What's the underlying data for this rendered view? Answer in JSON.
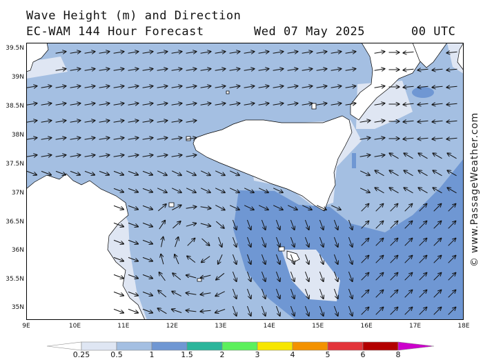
{
  "header": {
    "title": "Wave Height (m) and Direction",
    "model": "EC-WAM 144 Hour Forecast",
    "date": "Wed 07 May 2025",
    "time": "00 UTC"
  },
  "credit": "© www.PassageWeather.com",
  "axes": {
    "lat_labels": [
      "39.5N",
      "39N",
      "38.5N",
      "38N",
      "37.5N",
      "37N",
      "36.5N",
      "36N",
      "35.5N",
      "35N"
    ],
    "lon_labels": [
      "9E",
      "10E",
      "11E",
      "12E",
      "13E",
      "14E",
      "15E",
      "16E",
      "17E",
      "18E"
    ],
    "lat_range": [
      34.8,
      39.7
    ],
    "lon_range": [
      9,
      18
    ]
  },
  "legend": {
    "ticks": [
      "0.25",
      "0.5",
      "1",
      "1.5",
      "2",
      "3",
      "4",
      "5",
      "6",
      "8"
    ],
    "colors": [
      "#ffffff",
      "#dfe6f3",
      "#a4bfe2",
      "#6f97d3",
      "#2bb59b",
      "#5cf05c",
      "#f7e600",
      "#f39200",
      "#e3343a",
      "#b30000",
      "#cc00cc"
    ]
  },
  "colors": {
    "land": "#ffffff",
    "sea_low": "#dfe6f3",
    "sea_mid": "#a4bfe2",
    "sea_high": "#6f97d3",
    "arrow": "#111111"
  }
}
